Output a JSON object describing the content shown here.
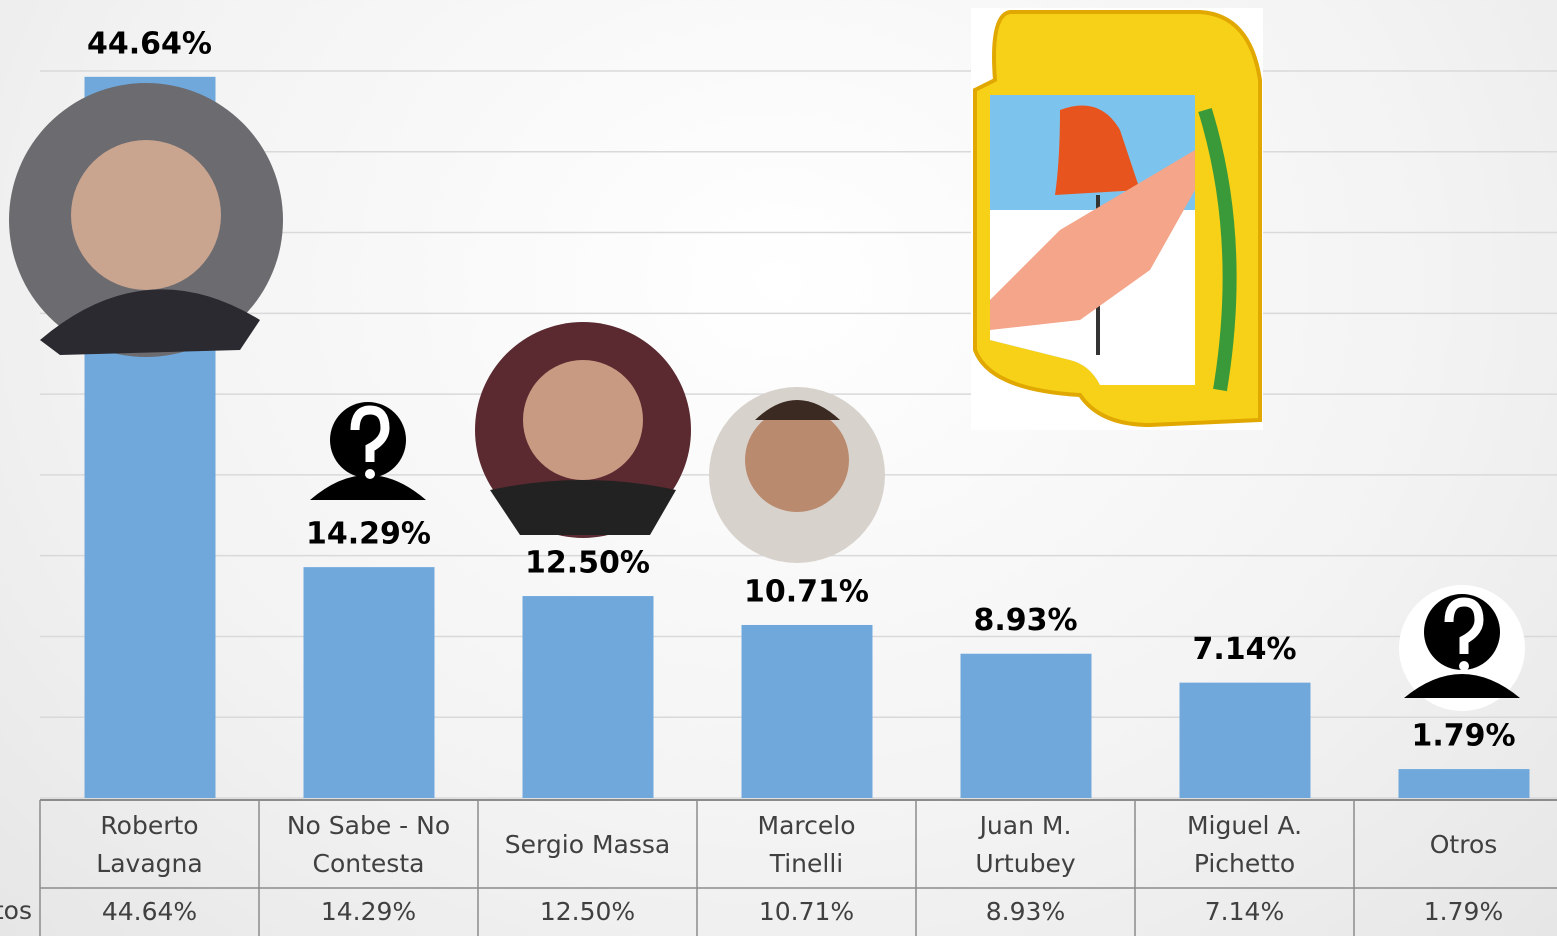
{
  "chart_data": {
    "type": "bar",
    "categories": [
      "Roberto Lavagna",
      "No Sabe - No Contesta",
      "Sergio Massa",
      "Marcelo Tinelli",
      "Juan M. Urtubey",
      "Miguel A. Pichetto",
      "Otros"
    ],
    "values": [
      44.64,
      14.29,
      12.5,
      10.71,
      8.93,
      7.14,
      1.79
    ],
    "value_labels": [
      "44.64%",
      "14.29%",
      "12.50%",
      "10.71%",
      "8.93%",
      "7.14%",
      "1.79%"
    ],
    "row_label": "Votos",
    "color": "#70a8dc",
    "ylim": [
      0,
      45
    ],
    "yticks": [
      0,
      5,
      10,
      15,
      20,
      25,
      30,
      35,
      40,
      45
    ],
    "grid": true
  }
}
